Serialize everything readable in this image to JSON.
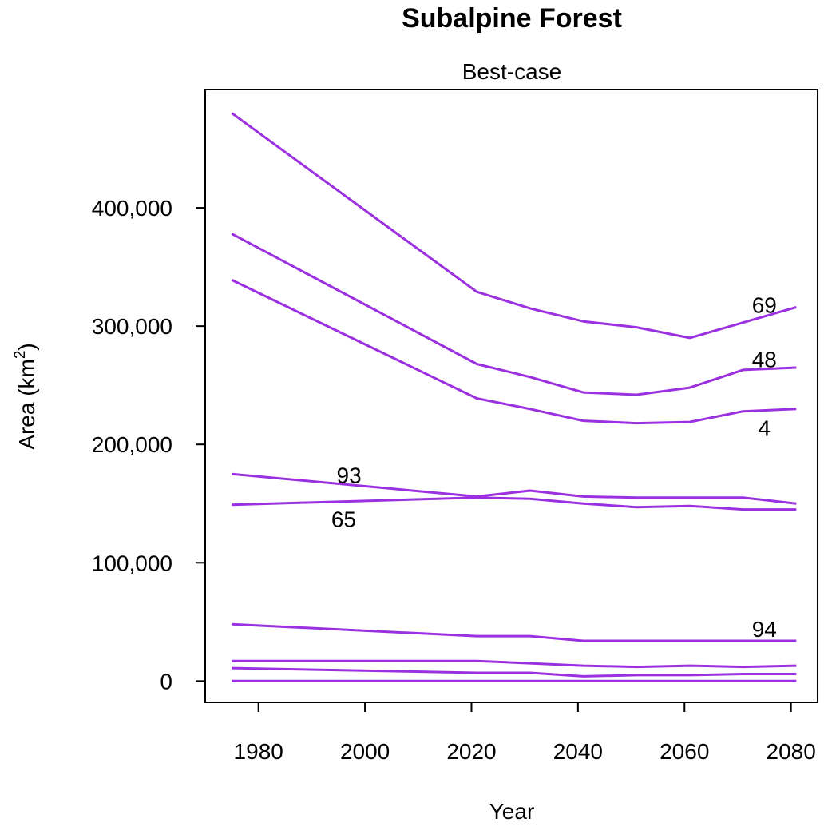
{
  "chart_data": {
    "type": "line",
    "title": "Subalpine Forest",
    "subtitle": "Best-case",
    "xlabel": "Year",
    "ylabel": "Area (km",
    "ylabel_sup": "2",
    "ylabel_close": ")",
    "xlim": [
      1970,
      2085
    ],
    "ylim": [
      -18000,
      500000
    ],
    "xticks": [
      1980,
      2000,
      2020,
      2040,
      2060,
      2080
    ],
    "xtick_labels": [
      "1980",
      "2000",
      "2020",
      "2040",
      "2060",
      "2080"
    ],
    "yticks": [
      0,
      100000,
      200000,
      300000,
      400000
    ],
    "ytick_labels": [
      "0",
      "100,000",
      "200,000",
      "300,000",
      "400,000"
    ],
    "grid": false,
    "legend": "none",
    "line_color": "#9B30E0",
    "x": [
      1975,
      2021,
      2031,
      2041,
      2051,
      2061,
      2071,
      2081
    ],
    "series": [
      {
        "values": [
          480000,
          329000,
          315000,
          304000,
          299000,
          290000,
          303000,
          316000
        ]
      },
      {
        "values": [
          378000,
          268000,
          257000,
          244000,
          242000,
          248000,
          263000,
          265000
        ]
      },
      {
        "values": [
          339000,
          239000,
          230000,
          220000,
          218000,
          219000,
          228000,
          230000
        ]
      },
      {
        "values": [
          175000,
          156000,
          161000,
          156000,
          155000,
          155000,
          155000,
          150000
        ]
      },
      {
        "values": [
          149000,
          155000,
          154000,
          150000,
          147000,
          148000,
          145000,
          145000
        ]
      },
      {
        "values": [
          48000,
          38000,
          38000,
          34000,
          34000,
          34000,
          34000,
          34000
        ]
      },
      {
        "values": [
          17000,
          17000,
          15000,
          13000,
          12000,
          13000,
          12000,
          13000
        ]
      },
      {
        "values": [
          11000,
          7000,
          7000,
          4000,
          5000,
          5000,
          6000,
          6000
        ]
      },
      {
        "values": [
          0,
          0,
          0,
          0,
          0,
          0,
          0,
          0
        ]
      }
    ],
    "annotations": [
      {
        "text": "69",
        "x": 2075,
        "y": 318000
      },
      {
        "text": "48",
        "x": 2075,
        "y": 272000
      },
      {
        "text": "4",
        "x": 2075,
        "y": 214000
      },
      {
        "text": "93",
        "x": 1997,
        "y": 174000
      },
      {
        "text": "65",
        "x": 1996,
        "y": 137000
      },
      {
        "text": "94",
        "x": 2075,
        "y": 44000
      }
    ]
  }
}
